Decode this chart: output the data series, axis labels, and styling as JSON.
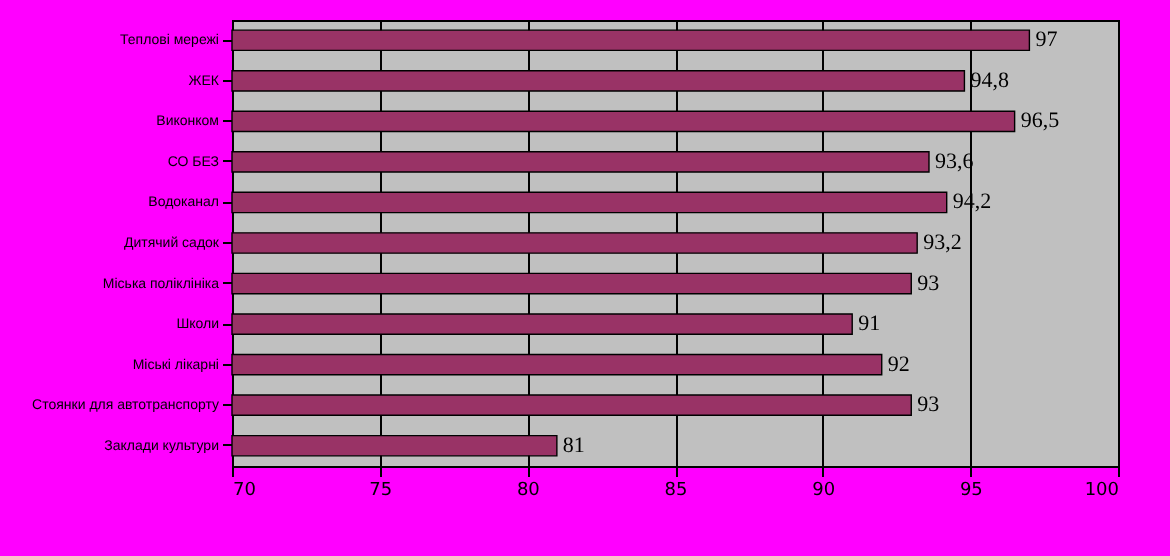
{
  "chart_data": {
    "type": "bar",
    "orientation": "horizontal",
    "categories": [
      "Теплові мережі",
      "ЖЕК",
      "Виконком",
      "СО БЕЗ",
      "Водоканал",
      "Дитячий садок",
      "Міська поліклініка",
      "Школи",
      "Міські лікарні",
      "Стоянки для автотранспорту",
      "Заклади культури"
    ],
    "values": [
      97,
      94.8,
      96.5,
      93.6,
      94.2,
      93.2,
      93,
      91,
      92,
      93,
      81
    ],
    "value_labels": [
      "97",
      "94,8",
      "96,5",
      "93,6",
      "94,2",
      "93,2",
      "93",
      "91",
      "92",
      "93",
      "81"
    ],
    "color": "#993366",
    "xlim": [
      70,
      100
    ],
    "xticks": [
      70,
      75,
      80,
      85,
      90,
      95,
      100
    ],
    "grid": "x"
  }
}
